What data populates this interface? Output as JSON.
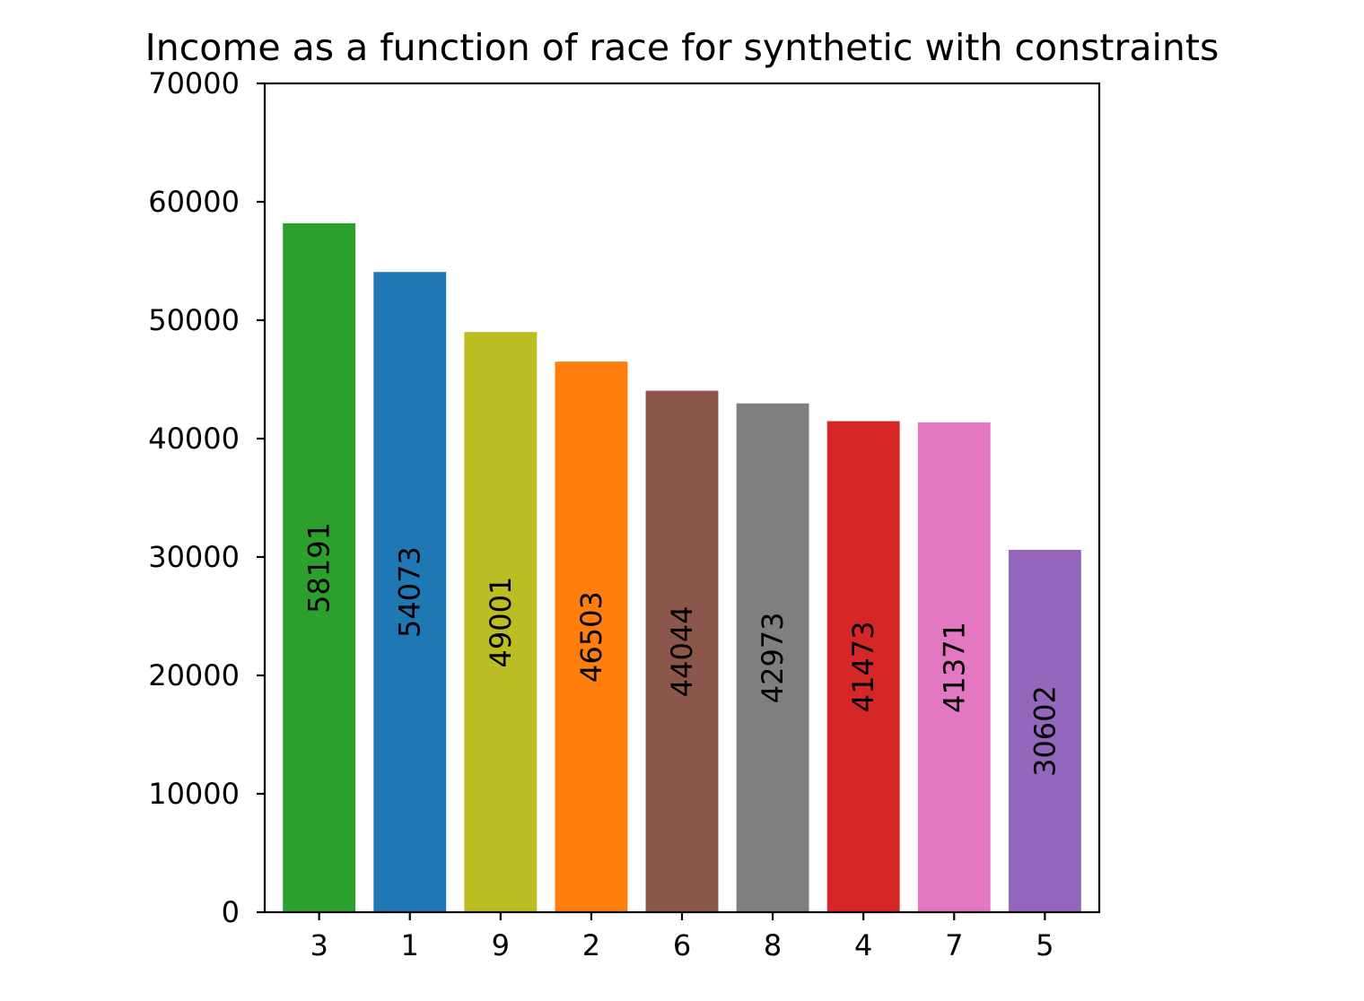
{
  "chart_data": {
    "type": "bar",
    "title": "Income as a function of race for synthetic with constraints",
    "xlabel": "",
    "ylabel": "",
    "categories": [
      "3",
      "1",
      "9",
      "2",
      "6",
      "8",
      "4",
      "7",
      "5"
    ],
    "values": [
      58191,
      54073,
      49001,
      46503,
      44044,
      42973,
      41473,
      41371,
      30602
    ],
    "data_labels": [
      "58191",
      "54073",
      "49001",
      "46503",
      "44044",
      "42973",
      "41473",
      "41371",
      "30602"
    ],
    "colors": [
      "#2ca02c",
      "#1f77b4",
      "#bcbd22",
      "#ff7f0e",
      "#8c564b",
      "#7f7f7f",
      "#d62728",
      "#e377c2",
      "#9467bd"
    ],
    "ylim": [
      0,
      70000
    ],
    "yticks": [
      0,
      10000,
      20000,
      30000,
      40000,
      50000,
      60000,
      70000
    ],
    "ytick_labels": [
      "0",
      "10000",
      "20000",
      "30000",
      "40000",
      "50000",
      "60000",
      "70000"
    ],
    "grid": false,
    "legend": "none"
  }
}
